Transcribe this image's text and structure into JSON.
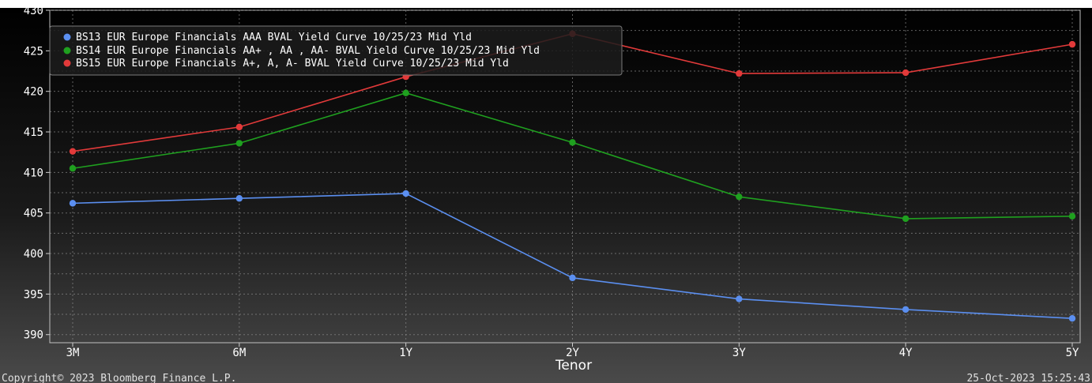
{
  "chart_data": {
    "type": "line",
    "xlabel": "Tenor",
    "ylabel": "",
    "ylim": [
      389,
      430
    ],
    "y_ticks": [
      390,
      395,
      400,
      405,
      410,
      415,
      420,
      425,
      430
    ],
    "categories": [
      "3M",
      "6M",
      "1Y",
      "2Y",
      "3Y",
      "4Y",
      "5Y"
    ],
    "grid": true,
    "legend_position": "top-left",
    "series": [
      {
        "name": "BS13 EUR Europe Financials AAA BVAL Yield Curve 10/25/23 Mid Yld",
        "color": "#5b8ff0",
        "values": [
          406.2,
          406.8,
          407.4,
          397.0,
          394.4,
          393.1,
          392.0
        ]
      },
      {
        "name": "BS14 EUR Europe Financials AA+ , AA , AA- BVAL Yield Curve 10/25/23 Mid Yld",
        "color": "#1fa01f",
        "values": [
          410.5,
          413.6,
          419.8,
          413.7,
          407.0,
          404.3,
          404.6
        ]
      },
      {
        "name": "BS15 EUR Europe Financials A+, A, A- BVAL Yield Curve 10/25/23 Mid Yld",
        "color": "#e23a3a",
        "values": [
          412.6,
          415.6,
          421.8,
          427.1,
          422.2,
          422.3,
          425.8
        ]
      }
    ]
  },
  "footer": {
    "copyright": "Copyright© 2023 Bloomberg Finance L.P.",
    "timestamp": "25-Oct-2023 15:25:43"
  }
}
